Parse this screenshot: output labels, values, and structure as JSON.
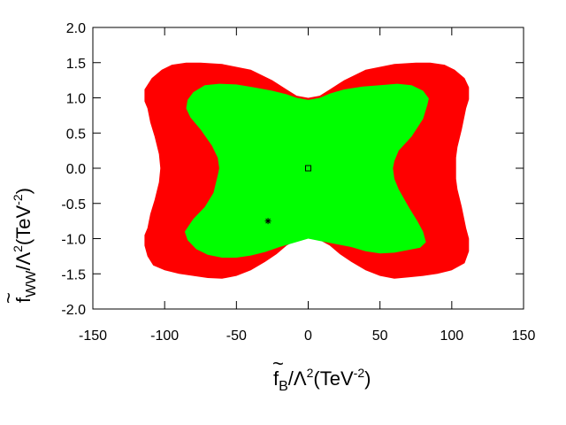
{
  "chart_data": {
    "type": "area",
    "xlabel": {
      "tilde": "~",
      "symbol": "f",
      "subscript": "B",
      "rest": "/Λ",
      "power": "2",
      "units_open": "(TeV",
      "units_power": "-2",
      "units_close": ")"
    },
    "ylabel": {
      "tilde": "~",
      "symbol": "f",
      "subscript": "WW",
      "rest": "/Λ",
      "power": "2",
      "units_open": "(TeV",
      "units_power": "-2",
      "units_close": ")"
    },
    "xlim": [
      -150,
      150
    ],
    "ylim": [
      -2.0,
      2.0
    ],
    "x_ticks": [
      -150,
      -100,
      -50,
      0,
      50,
      100,
      150
    ],
    "x_tick_labels": [
      "-150",
      "-100",
      "-50",
      "0",
      "50",
      "100",
      "150"
    ],
    "y_ticks": [
      -2.0,
      -1.5,
      -1.0,
      -0.5,
      0.0,
      0.5,
      1.0,
      1.5,
      2.0
    ],
    "y_tick_labels": [
      "-2.0",
      "-1.5",
      "-1.0",
      "-0.5",
      "0.0",
      "0.5",
      "1.0",
      "1.5",
      "2.0"
    ],
    "grid": false,
    "colors": {
      "outer_region": "#ff0000",
      "inner_region": "#00ff00"
    },
    "regions": [
      {
        "color": "#ff0000",
        "points": [
          [
            -109,
            1.28
          ],
          [
            -102,
            1.4
          ],
          [
            -95,
            1.47
          ],
          [
            -85,
            1.5
          ],
          [
            -75,
            1.5
          ],
          [
            -60,
            1.48
          ],
          [
            -40,
            1.4
          ],
          [
            -25,
            1.25
          ],
          [
            -15,
            1.12
          ],
          [
            -8,
            1.03
          ],
          [
            0,
            1.0
          ],
          [
            8,
            1.03
          ],
          [
            15,
            1.12
          ],
          [
            25,
            1.25
          ],
          [
            40,
            1.4
          ],
          [
            60,
            1.48
          ],
          [
            75,
            1.5
          ],
          [
            85,
            1.5
          ],
          [
            95,
            1.47
          ],
          [
            102,
            1.4
          ],
          [
            109,
            1.28
          ],
          [
            112,
            1.15
          ],
          [
            112,
            0.98
          ],
          [
            110,
            0.85
          ],
          [
            107,
            0.55
          ],
          [
            104,
            0.3
          ],
          [
            103,
            0.15
          ],
          [
            103,
            0.0
          ],
          [
            103,
            -0.15
          ],
          [
            104,
            -0.3
          ],
          [
            107,
            -0.55
          ],
          [
            110,
            -0.85
          ],
          [
            112,
            -1.0
          ],
          [
            112,
            -1.18
          ],
          [
            109,
            -1.35
          ],
          [
            100,
            -1.45
          ],
          [
            90,
            -1.5
          ],
          [
            80,
            -1.53
          ],
          [
            70,
            -1.55
          ],
          [
            60,
            -1.57
          ],
          [
            50,
            -1.53
          ],
          [
            40,
            -1.45
          ],
          [
            30,
            -1.33
          ],
          [
            22,
            -1.22
          ],
          [
            15,
            -1.1
          ],
          [
            8,
            -1.02
          ],
          [
            0,
            -0.98
          ],
          [
            -8,
            -1.02
          ],
          [
            -15,
            -1.1
          ],
          [
            -22,
            -1.22
          ],
          [
            -30,
            -1.33
          ],
          [
            -40,
            -1.45
          ],
          [
            -50,
            -1.53
          ],
          [
            -60,
            -1.57
          ],
          [
            -70,
            -1.56
          ],
          [
            -80,
            -1.53
          ],
          [
            -90,
            -1.5
          ],
          [
            -100,
            -1.45
          ],
          [
            -108,
            -1.38
          ],
          [
            -112,
            -1.25
          ],
          [
            -114,
            -1.1
          ],
          [
            -114,
            -0.95
          ],
          [
            -112,
            -0.85
          ],
          [
            -110,
            -0.65
          ],
          [
            -107,
            -0.45
          ],
          [
            -104,
            -0.2
          ],
          [
            -103,
            0.0
          ],
          [
            -104,
            0.2
          ],
          [
            -107,
            0.45
          ],
          [
            -110,
            0.65
          ],
          [
            -112,
            0.85
          ],
          [
            -114,
            0.95
          ],
          [
            -114,
            1.12
          ]
        ]
      },
      {
        "color": "#00ff00",
        "points": [
          [
            -85,
            0.85
          ],
          [
            -84,
            0.97
          ],
          [
            -80,
            1.08
          ],
          [
            -72,
            1.18
          ],
          [
            -62,
            1.2
          ],
          [
            -50,
            1.19
          ],
          [
            -38,
            1.15
          ],
          [
            -25,
            1.1
          ],
          [
            -15,
            1.05
          ],
          [
            -8,
            1.0
          ],
          [
            0,
            0.97
          ],
          [
            8,
            1.0
          ],
          [
            15,
            1.06
          ],
          [
            25,
            1.12
          ],
          [
            38,
            1.16
          ],
          [
            50,
            1.18
          ],
          [
            62,
            1.2
          ],
          [
            72,
            1.18
          ],
          [
            80,
            1.1
          ],
          [
            84,
            0.99
          ],
          [
            83,
            0.9
          ],
          [
            80,
            0.7
          ],
          [
            72,
            0.45
          ],
          [
            63,
            0.25
          ],
          [
            60,
            0.1
          ],
          [
            59,
            0.0
          ],
          [
            60,
            -0.15
          ],
          [
            63,
            -0.3
          ],
          [
            70,
            -0.55
          ],
          [
            76,
            -0.75
          ],
          [
            80,
            -0.9
          ],
          [
            82,
            -1.05
          ],
          [
            78,
            -1.13
          ],
          [
            70,
            -1.16
          ],
          [
            60,
            -1.2
          ],
          [
            50,
            -1.21
          ],
          [
            40,
            -1.18
          ],
          [
            30,
            -1.12
          ],
          [
            20,
            -1.08
          ],
          [
            10,
            -1.04
          ],
          [
            0,
            -1.0
          ],
          [
            -10,
            -1.06
          ],
          [
            -20,
            -1.12
          ],
          [
            -30,
            -1.19
          ],
          [
            -40,
            -1.24
          ],
          [
            -50,
            -1.27
          ],
          [
            -60,
            -1.27
          ],
          [
            -70,
            -1.23
          ],
          [
            -78,
            -1.15
          ],
          [
            -84,
            -1.02
          ],
          [
            -86,
            -0.9
          ],
          [
            -80,
            -0.72
          ],
          [
            -72,
            -0.55
          ],
          [
            -66,
            -0.35
          ],
          [
            -63,
            -0.1
          ],
          [
            -62,
            0.0
          ],
          [
            -63,
            0.15
          ],
          [
            -67,
            0.32
          ],
          [
            -75,
            0.55
          ],
          [
            -82,
            0.72
          ]
        ]
      }
    ],
    "markers": [
      {
        "shape": "square",
        "x": 0,
        "y": 0.0
      },
      {
        "shape": "star",
        "x": -28,
        "y": -0.75
      }
    ]
  }
}
